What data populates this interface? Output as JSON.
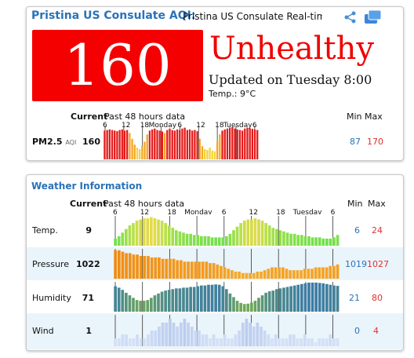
{
  "aqi_card": {
    "title": "Pristina US Consulate AQI:",
    "subtitle": "Pristina US Consulate Real-time",
    "aqi_value": "160",
    "level": "Unhealthy",
    "updated": "Updated on Tuesday 8:00",
    "temp": "Temp.: 9°C",
    "current_label": "Current",
    "past_label": "Past 48 hours data",
    "min_label": "Min",
    "max_label": "Max",
    "share_icon": "share-icon",
    "embed_icon": "widget-icon",
    "colors": {
      "aqi_box": "#f50000",
      "title": "#2a72b8"
    }
  },
  "chart_data": [
    {
      "type": "bar",
      "title": "PM2.5",
      "unit": "AQI",
      "current": "160",
      "min": "87",
      "max": "170",
      "x_ticks": [
        "6",
        "12",
        "18",
        "Monday",
        "6",
        "12",
        "18",
        "Tuesday",
        "6"
      ],
      "values": [
        158,
        160,
        162,
        160,
        158,
        156,
        160,
        162,
        158,
        160,
        150,
        130,
        110,
        100,
        95,
        105,
        120,
        145,
        158,
        162,
        165,
        160,
        158,
        155,
        150,
        160,
        165,
        160,
        158,
        162,
        160,
        165,
        168,
        160,
        162,
        158,
        160,
        156,
        130,
        105,
        95,
        92,
        100,
        90,
        87,
        120,
        145,
        158,
        162,
        165,
        168,
        170,
        165,
        162,
        160,
        158,
        165,
        168,
        166,
        164,
        162,
        160
      ]
    },
    {
      "type": "bar",
      "title": "Temp.",
      "current": "9",
      "min": "6",
      "max": "24",
      "x_ticks": [
        "6",
        "12",
        "18",
        "Monday",
        "6",
        "12",
        "18",
        "Tuesday",
        "6"
      ],
      "values": [
        6,
        8,
        11,
        14,
        17,
        19,
        21,
        22,
        23,
        23,
        24,
        23,
        22,
        21,
        19,
        17,
        15,
        13,
        12,
        11,
        10,
        10,
        9,
        9,
        8,
        8,
        8,
        7,
        7,
        7,
        7,
        8,
        10,
        13,
        16,
        19,
        21,
        22,
        22,
        23,
        22,
        21,
        19,
        17,
        15,
        14,
        13,
        12,
        11,
        10,
        10,
        9,
        9,
        8,
        8,
        7,
        7,
        7,
        6,
        6,
        6,
        7,
        9
      ]
    },
    {
      "type": "bar",
      "title": "Pressure",
      "current": "1022",
      "min": "1019",
      "max": "1027",
      "x_ticks": [
        "6",
        "12",
        "18",
        "Monday",
        "6",
        "12",
        "18",
        "Tuesday",
        "6"
      ],
      "values": [
        1027,
        1027,
        1026.5,
        1026,
        1026,
        1025.5,
        1025.5,
        1025,
        1025,
        1025,
        1024.5,
        1024.5,
        1024.5,
        1024,
        1024,
        1024,
        1024,
        1023.5,
        1023.5,
        1023,
        1023,
        1023,
        1023,
        1023,
        1023,
        1023,
        1022.5,
        1022.5,
        1022,
        1021.5,
        1021,
        1020.5,
        1020,
        1019.5,
        1019.5,
        1019,
        1019,
        1019,
        1019,
        1019.5,
        1019.5,
        1020,
        1020.5,
        1021,
        1021,
        1021,
        1021,
        1020.5,
        1020,
        1020,
        1020,
        1020,
        1020.5,
        1020.5,
        1020.5,
        1021,
        1021,
        1021,
        1021,
        1021.5,
        1021.5,
        1022
      ]
    },
    {
      "type": "bar",
      "title": "Humidity",
      "current": "71",
      "min": "21",
      "max": "80",
      "x_ticks": [
        "6",
        "12",
        "18",
        "Monday",
        "6",
        "12",
        "18",
        "Tuesday",
        "6"
      ],
      "values": [
        70,
        66,
        60,
        52,
        45,
        38,
        32,
        30,
        30,
        32,
        38,
        45,
        50,
        55,
        58,
        60,
        62,
        64,
        64,
        66,
        66,
        68,
        68,
        70,
        72,
        72,
        74,
        74,
        75,
        74,
        70,
        62,
        50,
        40,
        30,
        24,
        21,
        22,
        25,
        30,
        38,
        45,
        52,
        56,
        58,
        62,
        64,
        66,
        68,
        70,
        72,
        74,
        76,
        78,
        80,
        80,
        80,
        79,
        78,
        76,
        74,
        72,
        71
      ]
    },
    {
      "type": "bar",
      "title": "Wind",
      "current": "1",
      "min": "0",
      "max": "4",
      "x_ticks": [
        "6",
        "12",
        "18",
        "Monday",
        "6",
        "12",
        "18",
        "Tuesday",
        "6"
      ],
      "values": [
        1,
        1,
        1.5,
        1.5,
        1,
        1,
        1.5,
        1,
        1,
        1.5,
        2,
        2,
        2.5,
        3,
        3,
        3.5,
        3,
        2.5,
        3,
        3.5,
        3,
        2.5,
        2,
        2,
        1.5,
        1.5,
        1,
        1.5,
        1,
        1,
        1.5,
        1,
        1,
        1.5,
        2,
        3,
        3.5,
        3,
        2.5,
        3,
        2.5,
        2,
        1.5,
        1,
        1.5,
        1,
        1,
        1,
        1.5,
        1.5,
        1,
        1,
        1.5,
        1,
        1,
        0.5,
        1,
        1,
        1,
        1.5,
        1,
        1
      ]
    }
  ],
  "weather_card": {
    "title": "Weather Information",
    "current_label": "Current",
    "past_label": "Past 48 hours data",
    "min_label": "Min",
    "max_label": "Max"
  }
}
